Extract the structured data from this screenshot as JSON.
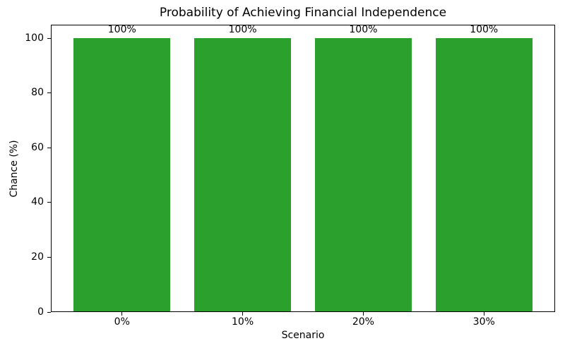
{
  "chart_data": {
    "type": "bar",
    "title": "Probability of Achieving Financial Independence",
    "xlabel": "Scenario",
    "ylabel": "Chance (%)",
    "categories": [
      "0%",
      "10%",
      "20%",
      "30%"
    ],
    "values": [
      100,
      100,
      100,
      100
    ],
    "bar_labels": [
      "100%",
      "100%",
      "100%",
      "100%"
    ],
    "yticks": [
      0,
      20,
      40,
      60,
      80,
      100
    ],
    "ylim": [
      0,
      105
    ],
    "bar_color": "#2ca02c",
    "text_color": "#000000",
    "grid": false,
    "legend_position": "none"
  }
}
